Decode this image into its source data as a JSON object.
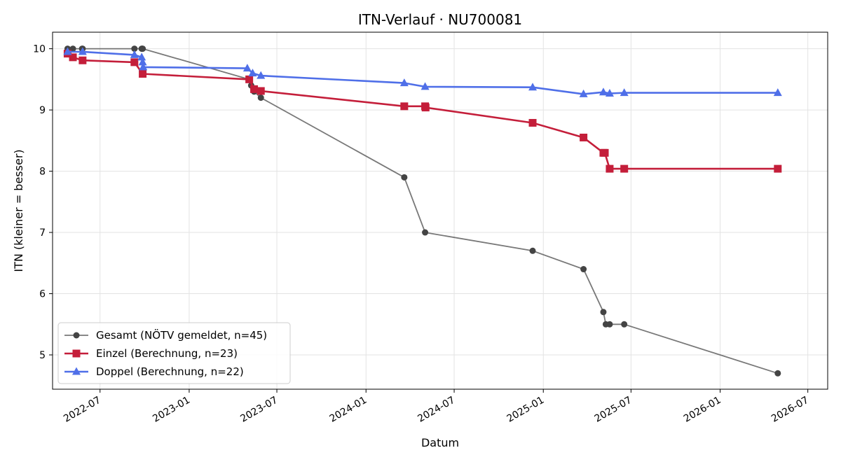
{
  "chart_data": {
    "type": "line",
    "title": "ITN-Verlauf · NU700081",
    "xlabel": "Datum",
    "ylabel": "ITN  (kleiner = besser)",
    "xlim": [
      "2022-03-25",
      "2026-08-11"
    ],
    "ylim": [
      4.44,
      10.27
    ],
    "x_ticks": [
      "2022-07",
      "2023-01",
      "2023-07",
      "2024-01",
      "2024-07",
      "2025-01",
      "2025-07",
      "2026-01",
      "2026-07"
    ],
    "y_ticks": [
      5,
      6,
      7,
      8,
      9,
      10
    ],
    "grid": true,
    "legend_position": "lower-left",
    "series": [
      {
        "name": "Gesamt (NÖTV gemeldet, n=45)",
        "color": "#444444",
        "marker": "circle",
        "points": [
          [
            "2022-04-25",
            10.0
          ],
          [
            "2022-05-06",
            10.0
          ],
          [
            "2022-05-25",
            10.0
          ],
          [
            "2022-05-26",
            10.0
          ],
          [
            "2022-09-10",
            10.0
          ],
          [
            "2022-09-25",
            10.0
          ],
          [
            "2022-09-26",
            10.0
          ],
          [
            "2022-09-27",
            10.0
          ],
          [
            "2023-05-05",
            9.5
          ],
          [
            "2023-05-09",
            9.4
          ],
          [
            "2023-05-15",
            9.3
          ],
          [
            "2023-05-29",
            9.2
          ],
          [
            "2024-03-20",
            7.9
          ],
          [
            "2024-05-02",
            7.0
          ],
          [
            "2024-12-10",
            6.7
          ],
          [
            "2025-03-25",
            6.4
          ],
          [
            "2025-05-05",
            5.7
          ],
          [
            "2025-05-10",
            5.5
          ],
          [
            "2025-05-18",
            5.5
          ],
          [
            "2025-06-17",
            5.5
          ],
          [
            "2026-04-30",
            4.7
          ]
        ]
      },
      {
        "name": "Einzel (Berechnung, n=23)",
        "color": "#c41e3a",
        "marker": "square",
        "points": [
          [
            "2022-04-25",
            9.92
          ],
          [
            "2022-05-06",
            9.86
          ],
          [
            "2022-05-26",
            9.81
          ],
          [
            "2022-09-10",
            9.78
          ],
          [
            "2022-09-27",
            9.59
          ],
          [
            "2023-05-05",
            9.5
          ],
          [
            "2023-05-15",
            9.34
          ],
          [
            "2023-05-29",
            9.31
          ],
          [
            "2024-03-20",
            9.06
          ],
          [
            "2024-05-02",
            9.06
          ],
          [
            "2024-05-03",
            9.04
          ],
          [
            "2024-12-10",
            8.79
          ],
          [
            "2025-03-25",
            8.55
          ],
          [
            "2025-05-05",
            8.3
          ],
          [
            "2025-05-08",
            8.3
          ],
          [
            "2025-05-18",
            8.04
          ],
          [
            "2025-06-17",
            8.04
          ],
          [
            "2026-04-30",
            8.04
          ]
        ]
      },
      {
        "name": "Doppel (Berechnung, n=22)",
        "color": "#4f6fe8",
        "marker": "triangle",
        "points": [
          [
            "2022-04-25",
            9.95
          ],
          [
            "2022-05-26",
            9.95
          ],
          [
            "2022-09-10",
            9.9
          ],
          [
            "2022-09-25",
            9.86
          ],
          [
            "2022-09-27",
            9.78
          ],
          [
            "2022-09-28",
            9.7
          ],
          [
            "2023-05-01",
            9.68
          ],
          [
            "2023-05-12",
            9.6
          ],
          [
            "2023-05-29",
            9.56
          ],
          [
            "2024-03-20",
            9.44
          ],
          [
            "2024-05-02",
            9.38
          ],
          [
            "2024-12-10",
            9.37
          ],
          [
            "2025-03-25",
            9.26
          ],
          [
            "2025-05-05",
            9.29
          ],
          [
            "2025-05-18",
            9.27
          ],
          [
            "2025-06-17",
            9.28
          ],
          [
            "2026-04-30",
            9.28
          ]
        ]
      }
    ]
  }
}
